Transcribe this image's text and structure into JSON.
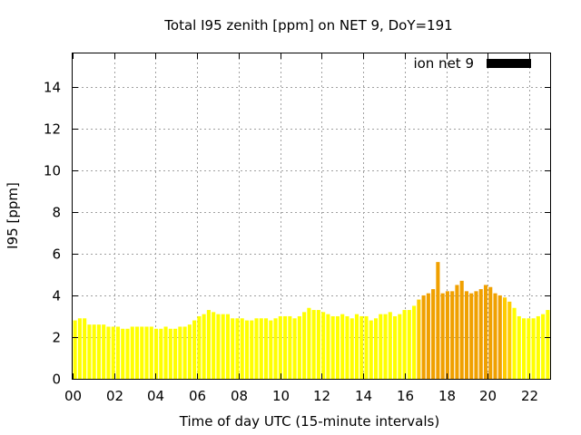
{
  "chart_data": {
    "type": "bar",
    "title": "Total I95 zenith [ppm] on NET 9, DoY=191",
    "xlabel": "Time of day UTC (15-minute intervals)",
    "ylabel": "I95 [ppm]",
    "xlim": [
      0,
      23
    ],
    "ylim": [
      0,
      15.6
    ],
    "x_ticks": [
      "00",
      "02",
      "04",
      "06",
      "08",
      "10",
      "12",
      "14",
      "16",
      "18",
      "20",
      "22"
    ],
    "y_ticks": [
      "0",
      "2",
      "4",
      "6",
      "8",
      "10",
      "12",
      "14"
    ],
    "grid": true,
    "legend_position": "top-right",
    "colors": {
      "low": "#ffff00",
      "mid": "#ffcc00",
      "high": "#f0a000",
      "legend_swatch": "#000000"
    },
    "series": [
      {
        "name": "ion net 9",
        "values": [
          2.8,
          2.9,
          2.9,
          2.6,
          2.6,
          2.6,
          2.6,
          2.5,
          2.5,
          2.5,
          2.4,
          2.4,
          2.5,
          2.5,
          2.5,
          2.5,
          2.5,
          2.4,
          2.4,
          2.5,
          2.4,
          2.4,
          2.5,
          2.5,
          2.6,
          2.8,
          3.0,
          3.1,
          3.3,
          3.2,
          3.1,
          3.1,
          3.1,
          2.9,
          2.9,
          2.9,
          2.8,
          2.8,
          2.9,
          2.9,
          2.9,
          2.8,
          2.9,
          3.0,
          3.0,
          3.0,
          2.9,
          3.0,
          3.2,
          3.4,
          3.3,
          3.3,
          3.2,
          3.1,
          3.0,
          3.0,
          3.1,
          3.0,
          2.9,
          3.1,
          3.0,
          3.0,
          2.8,
          2.9,
          3.1,
          3.1,
          3.2,
          3.0,
          3.1,
          3.3,
          3.3,
          3.5,
          3.8,
          4.0,
          4.1,
          4.3,
          5.6,
          4.1,
          4.2,
          4.2,
          4.5,
          4.7,
          4.2,
          4.1,
          4.2,
          4.3,
          4.5,
          4.4,
          4.1,
          4.0,
          3.9,
          3.7,
          3.4,
          3.0,
          2.9,
          2.9,
          2.9,
          3.0,
          3.1,
          3.3
        ]
      }
    ]
  }
}
